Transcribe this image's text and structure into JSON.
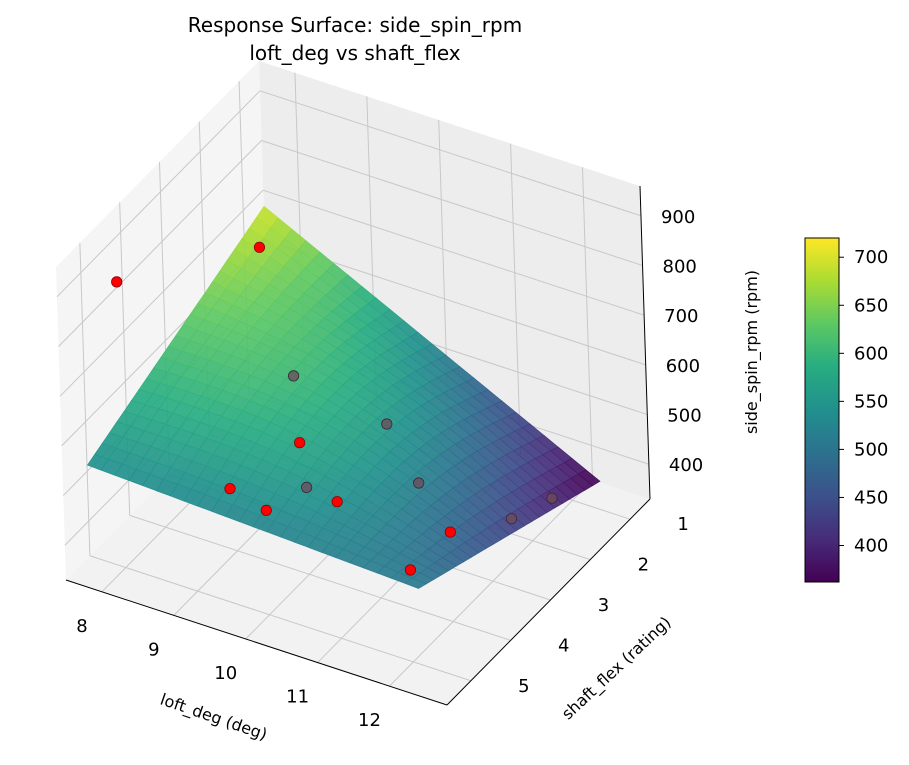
{
  "chart_data": {
    "type": "surface3d",
    "title": "Response Surface: side_spin_rpm",
    "subtitle": "loft_deg vs shaft_flex",
    "xlabel": "loft_deg (deg)",
    "ylabel": "shaft_flex (rating)",
    "zlabel": "side_spin_rpm (rpm)",
    "x_ticks": [
      "8",
      "9",
      "10",
      "11",
      "12"
    ],
    "y_ticks": [
      "1",
      "2",
      "3",
      "4",
      "5"
    ],
    "z_ticks": [
      "400",
      "500",
      "600",
      "700",
      "800",
      "900"
    ],
    "xlim": [
      7.5,
      12.8
    ],
    "ylim": [
      0.5,
      5.6
    ],
    "zlim": [
      330,
      960
    ],
    "colorbar": {
      "colormap": "viridis",
      "range": [
        362,
        720
      ],
      "ticks": [
        "400",
        "450",
        "500",
        "550",
        "600",
        "650",
        "700"
      ]
    },
    "surface_corners": {
      "loft_low_flex_low": 695,
      "loft_low_flex_high": 540,
      "loft_high_flex_low": 360,
      "loft_high_flex_high": 510
    },
    "observed_points": [
      {
        "x": 8.0,
        "y": 5.0,
        "z": 905
      },
      {
        "x": 10.5,
        "y": 5.0,
        "z": 700
      },
      {
        "x": 11.0,
        "y": 5.0,
        "z": 605
      },
      {
        "x": 9.5,
        "y": 5.0,
        "z": 560
      },
      {
        "x": 10.0,
        "y": 5.0,
        "z": 540
      },
      {
        "x": 10.0,
        "y": 4.0,
        "z": 505
      },
      {
        "x": 8.0,
        "y": 1.5,
        "z": 690
      },
      {
        "x": 9.0,
        "y": 2.5,
        "z": 560
      },
      {
        "x": 12.0,
        "y": 4.0,
        "z": 510
      },
      {
        "x": 12.0,
        "y": 5.0,
        "z": 515
      },
      {
        "x": 10.0,
        "y": 2.0,
        "z": 470
      },
      {
        "x": 11.0,
        "y": 3.0,
        "z": 480
      },
      {
        "x": 12.0,
        "y": 2.5,
        "z": 415
      },
      {
        "x": 12.0,
        "y": 1.5,
        "z": 375
      }
    ],
    "marker_color": "#ff0000",
    "grid": true
  }
}
